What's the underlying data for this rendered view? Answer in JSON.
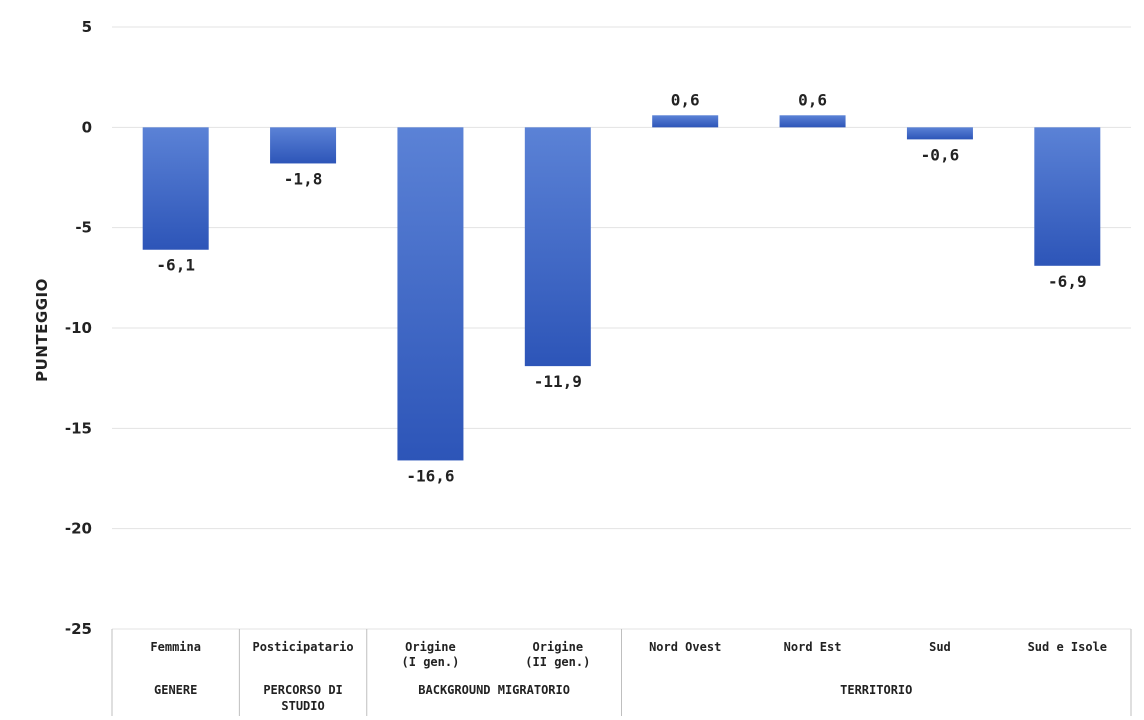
{
  "chart_data": {
    "type": "bar",
    "title": "",
    "ylabel": "PUNTEGGIO",
    "ylim": [
      -25,
      5
    ],
    "yticks": [
      5,
      0,
      -5,
      -10,
      -15,
      -20,
      -25
    ],
    "grid": true,
    "legend": "none",
    "bar_color": "#3a63c4",
    "categories": [
      [
        "Femmina"
      ],
      [
        "Posticipatario"
      ],
      [
        "Origine",
        "(I gen.)"
      ],
      [
        "Origine",
        "(II gen.)"
      ],
      [
        "Nord Ovest"
      ],
      [
        "Nord Est"
      ],
      [
        "Sud"
      ],
      [
        "Sud e Isole"
      ]
    ],
    "values": [
      -6.1,
      -1.8,
      -16.6,
      -11.9,
      0.6,
      0.6,
      -0.6,
      -6.9
    ],
    "value_labels": [
      "-6,1",
      "-1,8",
      "-16,6",
      "-11,9",
      "0,6",
      "0,6",
      "-0,6",
      "-6,9"
    ],
    "groups": [
      {
        "label": [
          "GENERE"
        ],
        "start": 0,
        "end": 0
      },
      {
        "label": [
          "PERCORSO DI",
          "STUDIO"
        ],
        "start": 1,
        "end": 1
      },
      {
        "label": [
          "BACKGROUND MIGRATORIO"
        ],
        "start": 2,
        "end": 3
      },
      {
        "label": [
          "TERRITORIO"
        ],
        "start": 4,
        "end": 7
      }
    ]
  }
}
